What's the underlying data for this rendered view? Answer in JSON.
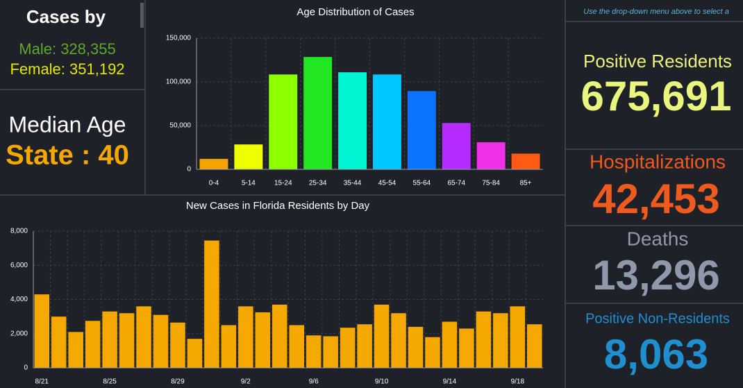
{
  "cases_panel": {
    "title": "Cases by",
    "male": "Male: 328,355",
    "female": "Female: 351,192"
  },
  "median_panel": {
    "title": "Median Age",
    "value": "State : 40"
  },
  "chart_data": [
    {
      "type": "bar",
      "title": "Age Distribution of Cases",
      "categories": [
        "0-4",
        "5-14",
        "15-24",
        "25-34",
        "35-44",
        "45-54",
        "55-64",
        "65-74",
        "75-84",
        "85+"
      ],
      "values": [
        12000,
        28500,
        108500,
        128500,
        111000,
        108500,
        89500,
        53000,
        31000,
        18000
      ],
      "colors": [
        "#f5a300",
        "#eeff00",
        "#8cff00",
        "#22e622",
        "#00f5d2",
        "#00c8ff",
        "#0a74ff",
        "#b62cff",
        "#f030e6",
        "#ff5a14"
      ],
      "ylim": [
        0,
        150000
      ],
      "yticks": [
        0,
        {
          "value": 50000,
          "label": "50,000"
        },
        {
          "value": 100000,
          "label": "100,000"
        },
        {
          "value": 150000,
          "label": "150,000"
        }
      ],
      "grid": true
    },
    {
      "type": "bar",
      "title": "New Cases in Florida Residents by Day",
      "categories": [
        "8/21",
        null,
        null,
        null,
        "8/25",
        null,
        null,
        null,
        "8/29",
        null,
        null,
        null,
        "9/2",
        null,
        null,
        null,
        "9/6",
        null,
        null,
        null,
        "9/10",
        null,
        null,
        null,
        "9/14",
        null,
        null,
        null,
        "9/18",
        null
      ],
      "values": [
        4300,
        3000,
        2100,
        2750,
        3300,
        3200,
        3600,
        3100,
        2650,
        1700,
        7450,
        2500,
        3600,
        3250,
        3700,
        2500,
        1900,
        1850,
        2350,
        2550,
        3700,
        3200,
        2400,
        1800,
        2700,
        2300,
        3300,
        3200,
        3600,
        2550
      ],
      "color": "#f5a800",
      "ylim": [
        0,
        8000
      ],
      "yticks": [
        0,
        {
          "value": 2000,
          "label": "2,000"
        },
        {
          "value": 4000,
          "label": "4,000"
        },
        {
          "value": 6000,
          "label": "6,000"
        },
        {
          "value": 8000,
          "label": "8,000"
        }
      ],
      "grid": true
    }
  ],
  "stats": {
    "note": "Use the drop-down menu above to select a",
    "items": [
      {
        "label": "Positive Residents",
        "value": "675,691"
      },
      {
        "label": "Hospitalizations",
        "value": "42,453"
      },
      {
        "label": "Deaths",
        "value": "13,296"
      },
      {
        "label": "Positive Non-Residents",
        "value": "8,063"
      }
    ]
  }
}
